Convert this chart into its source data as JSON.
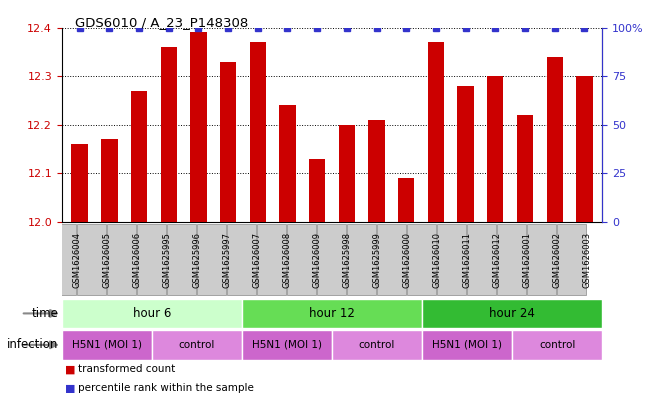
{
  "title": "GDS6010 / A_23_P148308",
  "samples": [
    "GSM1626004",
    "GSM1626005",
    "GSM1626006",
    "GSM1625995",
    "GSM1625996",
    "GSM1625997",
    "GSM1626007",
    "GSM1626008",
    "GSM1626009",
    "GSM1625998",
    "GSM1625999",
    "GSM1626000",
    "GSM1626010",
    "GSM1626011",
    "GSM1626012",
    "GSM1626001",
    "GSM1626002",
    "GSM1626003"
  ],
  "bar_values": [
    12.16,
    12.17,
    12.27,
    12.36,
    12.39,
    12.33,
    12.37,
    12.24,
    12.13,
    12.2,
    12.21,
    12.09,
    12.37,
    12.28,
    12.3,
    12.22,
    12.34,
    12.3
  ],
  "percentile_values": [
    100,
    100,
    100,
    100,
    100,
    100,
    100,
    100,
    100,
    100,
    100,
    100,
    100,
    100,
    100,
    100,
    100,
    100
  ],
  "ylim_left": [
    12.0,
    12.4
  ],
  "ylim_right": [
    0,
    100
  ],
  "yticks_left": [
    12.0,
    12.1,
    12.2,
    12.3,
    12.4
  ],
  "yticks_right": [
    0,
    25,
    50,
    75,
    100
  ],
  "ytick_labels_right": [
    "0",
    "25",
    "50",
    "75",
    "100%"
  ],
  "bar_color": "#cc0000",
  "dot_color": "#3333cc",
  "group_colors": [
    "#ccffcc",
    "#66dd55",
    "#33bb33"
  ],
  "groups": [
    {
      "label": "hour 6",
      "start": 0,
      "end": 6
    },
    {
      "label": "hour 12",
      "start": 6,
      "end": 12
    },
    {
      "label": "hour 24",
      "start": 12,
      "end": 18
    }
  ],
  "infection_colors": [
    "#cc66cc",
    "#dd88dd"
  ],
  "infections": [
    {
      "label": "H5N1 (MOI 1)",
      "start": 0,
      "end": 3
    },
    {
      "label": "control",
      "start": 3,
      "end": 6
    },
    {
      "label": "H5N1 (MOI 1)",
      "start": 6,
      "end": 9
    },
    {
      "label": "control",
      "start": 9,
      "end": 12
    },
    {
      "label": "H5N1 (MOI 1)",
      "start": 12,
      "end": 15
    },
    {
      "label": "control",
      "start": 15,
      "end": 18
    }
  ],
  "time_row_label": "time",
  "infection_row_label": "infection",
  "legend_bar_label": "transformed count",
  "legend_dot_label": "percentile rank within the sample",
  "bar_width": 0.55,
  "xlabel_bg": "#cccccc",
  "xlabel_edge": "#999999"
}
